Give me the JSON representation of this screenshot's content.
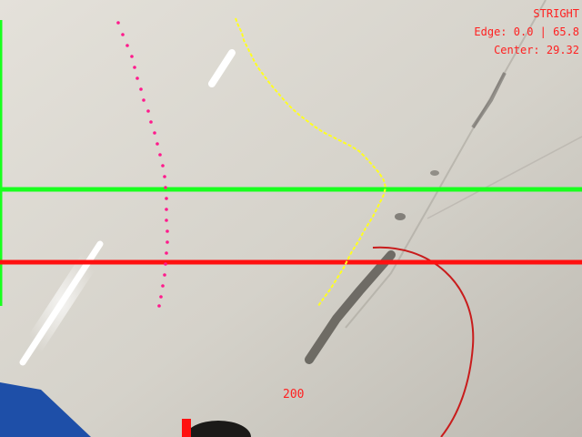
{
  "hud": {
    "status_text": "STRIGHT",
    "edge_text": "Edge: 0.0 | 65.8",
    "center_text": "Center: 29.32",
    "distance_text": "200"
  },
  "colors": {
    "hud_red": "#ff2020",
    "green_line": "#19ff1e",
    "red_line": "#ff1010",
    "edge_trace": "#ffff20",
    "center_trace": "#ff1a8c",
    "floor": "#d6d3cc",
    "mat_blue": "#1e4fa8"
  },
  "icons": {
    "position_marker": "red-bar-marker"
  }
}
